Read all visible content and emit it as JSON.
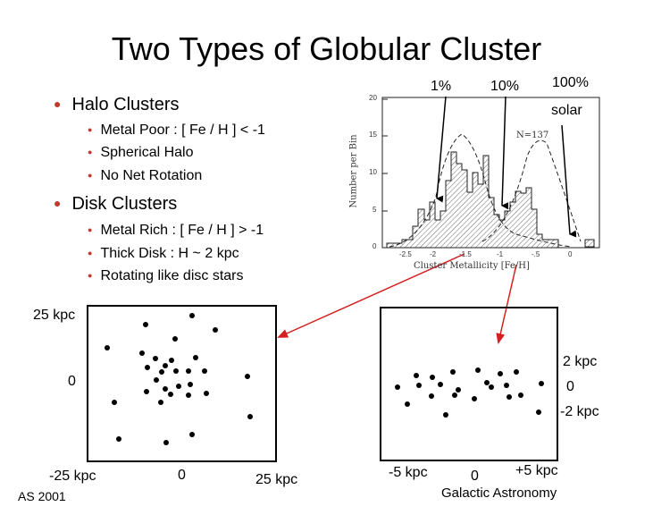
{
  "slide": {
    "title": "Two Types of Globular Cluster",
    "halo": {
      "heading": "Halo Clusters",
      "items": [
        "Metal Poor : [ Fe / H ] < -1",
        "Spherical Halo",
        "No Net Rotation"
      ]
    },
    "disk": {
      "heading": "Disk Clusters",
      "items": [
        "Metal Rich  : [ Fe / H ]  >  -1",
        "Thick  Disk :  H ~ 2 kpc",
        "Rotating like disc stars"
      ]
    },
    "histogram": {
      "markers": {
        "one_percent": "1%",
        "ten_percent": "10%",
        "hundred_percent": "100%",
        "solar": "solar"
      },
      "ylabel": "Number per Bin",
      "xlabel": "Cluster Metallicity [Fe/H]",
      "count_label": "N=137",
      "yticks": [
        "0",
        "5",
        "10",
        "15",
        "20"
      ],
      "xticks": [
        "-2.5",
        "-2",
        "-1.5",
        "-1",
        "-.5",
        "0"
      ]
    },
    "halo_plot": {
      "y_top": "25 kpc",
      "y_mid": "0",
      "x_left": "-25 kpc",
      "x_mid": "0",
      "x_right": "25 kpc"
    },
    "disk_plot": {
      "y_top": "2 kpc",
      "y_mid": "0",
      "y_bottom": "-2 kpc",
      "x_left": "-5 kpc",
      "x_mid": "0",
      "x_right": "+5 kpc"
    },
    "footer": {
      "left": "AS 2001",
      "right": "Galactic Astronomy"
    },
    "colors": {
      "bullet": "#c0392b",
      "arrow": "#d42020"
    }
  }
}
